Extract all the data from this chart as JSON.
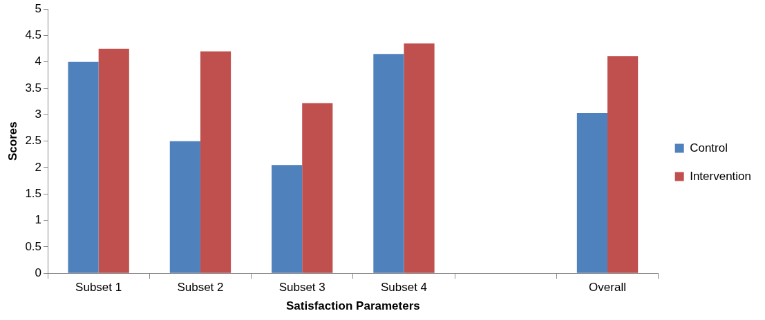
{
  "chart_data": {
    "type": "bar",
    "xlabel": "Satisfaction Parameters",
    "ylabel": "Scores",
    "categories": [
      "Subset 1",
      "Subset 2",
      "Subset 3",
      "Subset 4",
      null,
      "Overall"
    ],
    "series": [
      {
        "name": "Control",
        "color": "#4f81bd",
        "values": [
          4.0,
          2.5,
          2.05,
          4.15,
          null,
          3.03
        ]
      },
      {
        "name": "Intervention",
        "color": "#c0504d",
        "values": [
          4.25,
          4.2,
          3.22,
          4.35,
          null,
          4.11
        ]
      }
    ],
    "ylim": [
      0,
      5
    ],
    "yticks": [
      0,
      0.5,
      1,
      1.5,
      2,
      2.5,
      3,
      3.5,
      4,
      4.5,
      5
    ],
    "grid": false,
    "legend": "right"
  }
}
